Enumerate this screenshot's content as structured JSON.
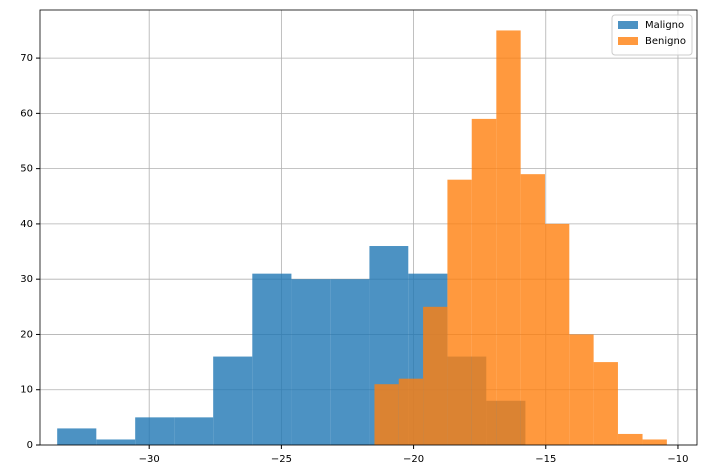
{
  "chart_data": {
    "type": "histogram",
    "series": [
      {
        "name": "Maligno",
        "color": "#1f77b4",
        "bins": [
          -33.48,
          -32.0,
          -30.53,
          -29.05,
          -27.58,
          -26.1,
          -24.62,
          -23.15,
          -21.67,
          -20.2,
          -18.72,
          -17.25,
          -15.77
        ],
        "values": [
          3,
          1,
          5,
          5,
          16,
          31,
          30,
          30,
          36,
          31,
          16,
          8
        ]
      },
      {
        "name": "Benigno",
        "color": "#ff7f0e",
        "bins": [
          -21.48,
          -20.56,
          -19.64,
          -18.72,
          -17.8,
          -16.87,
          -15.95,
          -15.03,
          -14.11,
          -13.19,
          -12.27,
          -11.34,
          -10.42
        ],
        "values": [
          11,
          12,
          25,
          48,
          59,
          75,
          49,
          40,
          20,
          15,
          2,
          1
        ]
      }
    ],
    "xlim": [
      -34.13,
      -9.28
    ],
    "ylim": [
      0,
      78.7
    ],
    "xticks": [
      {
        "value": -30,
        "label": "−30"
      },
      {
        "value": -25,
        "label": "−25"
      },
      {
        "value": -20,
        "label": "−20"
      },
      {
        "value": -15,
        "label": "−15"
      },
      {
        "value": -10,
        "label": "−10"
      }
    ],
    "yticks": [
      0,
      10,
      20,
      30,
      40,
      50,
      60,
      70
    ],
    "grid": true,
    "legend": "upper right",
    "opacity": 0.8
  }
}
